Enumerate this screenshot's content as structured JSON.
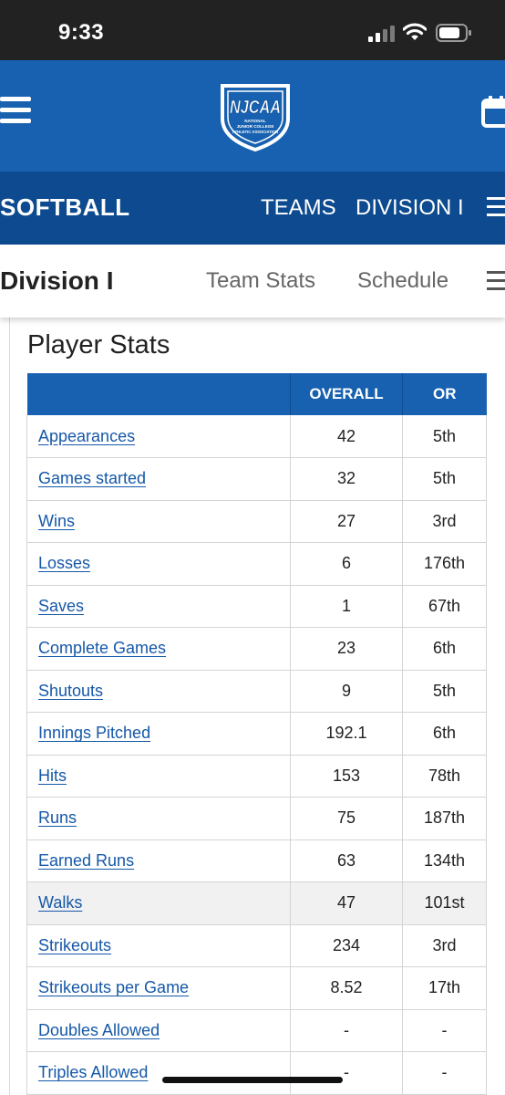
{
  "status_bar": {
    "time": "9:33",
    "icons": [
      "signal-icon",
      "wifi-icon",
      "battery-icon"
    ]
  },
  "header": {
    "logo_text": "NJCAA",
    "logo_subtext": "NATIONAL JUNIOR COLLEGE ATHLETIC ASSOCIATION",
    "icons": [
      "menu-icon",
      "calendar-icon"
    ]
  },
  "sport_nav": {
    "title": "SOFTBALL",
    "links": [
      "TEAMS",
      "DIVISION I"
    ]
  },
  "division_nav": {
    "title": "Division I",
    "links": [
      "Team Stats",
      "Schedule"
    ]
  },
  "player_stats": {
    "title": "Player Stats",
    "columns": [
      "",
      "OVERALL",
      "OR"
    ],
    "rows": [
      {
        "label": "Appearances",
        "overall": "42",
        "rank": "5th"
      },
      {
        "label": "Games started",
        "overall": "32",
        "rank": "5th"
      },
      {
        "label": "Wins",
        "overall": "27",
        "rank": "3rd"
      },
      {
        "label": "Losses",
        "overall": "6",
        "rank": "176th"
      },
      {
        "label": "Saves",
        "overall": "1",
        "rank": "67th"
      },
      {
        "label": "Complete Games",
        "overall": "23",
        "rank": "6th"
      },
      {
        "label": "Shutouts",
        "overall": "9",
        "rank": "5th"
      },
      {
        "label": "Innings Pitched",
        "overall": "192.1",
        "rank": "6th"
      },
      {
        "label": "Hits",
        "overall": "153",
        "rank": "78th"
      },
      {
        "label": "Runs",
        "overall": "75",
        "rank": "187th"
      },
      {
        "label": "Earned Runs",
        "overall": "63",
        "rank": "134th"
      },
      {
        "label": "Walks",
        "overall": "47",
        "rank": "101st"
      },
      {
        "label": "Strikeouts",
        "overall": "234",
        "rank": "3rd"
      },
      {
        "label": "Strikeouts per Game",
        "overall": "8.52",
        "rank": "17th"
      },
      {
        "label": "Doubles Allowed",
        "overall": "-",
        "rank": "-"
      },
      {
        "label": "Triples Allowed",
        "overall": "-",
        "rank": "-"
      }
    ],
    "highlighted_row": "Walks"
  },
  "colors": {
    "primary_blue": "#1761b0",
    "dark_blue": "#0d4a8f",
    "link_blue": "#1558a8",
    "status_bar": "#222222"
  }
}
